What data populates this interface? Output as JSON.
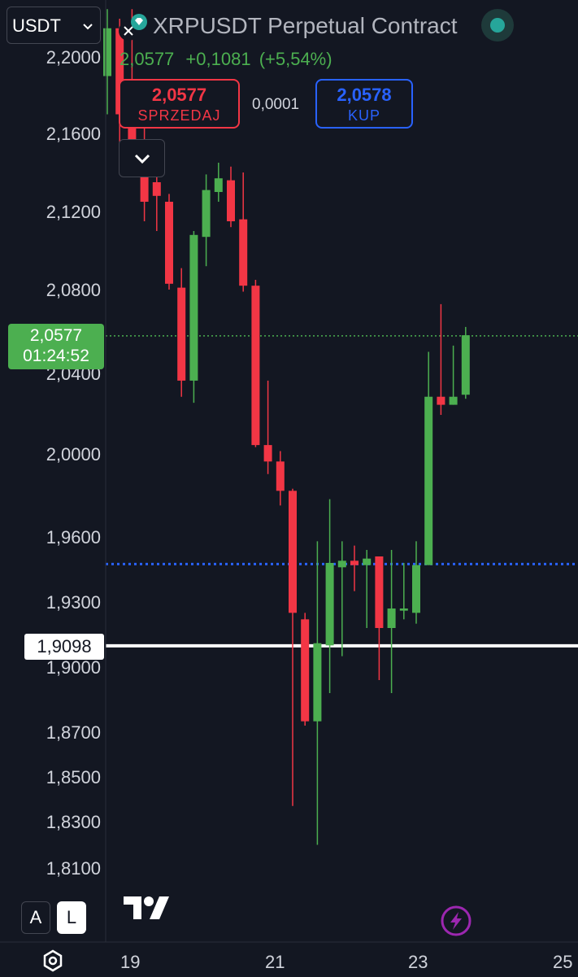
{
  "header": {
    "currency_select": "USDT",
    "title": "XRPUSDT Perpetual Contract",
    "last_price": "2,0577",
    "change": "+0,1081",
    "change_pct": "(+5,54%)",
    "sell_price": "2,0577",
    "sell_label": "SPRZEDAJ",
    "spread": "0,0001",
    "buy_price": "2,0578",
    "buy_label": "KUP"
  },
  "price_tag": {
    "price": "2,0577",
    "countdown": "01:24:52"
  },
  "white_line_label": "1,9098",
  "bottom": {
    "btn_a": "A",
    "btn_l": "L"
  },
  "colors": {
    "bg": "#131722",
    "up": "#4caf50",
    "down": "#f23645",
    "blue_line": "#2962ff",
    "status_dot": "#26a69a",
    "bolt": "#9c27b0"
  },
  "icons": [
    "close-icon",
    "dropdown-chevron-icon",
    "collapse-chevron-icon",
    "diamond-icon",
    "status-dot-icon",
    "tradingview-logo-icon",
    "lightning-icon",
    "settings-gear-icon"
  ],
  "chart_data": {
    "type": "candlestick",
    "y_ticks": [
      "2,2000",
      "2,1600",
      "2,1200",
      "2,0800",
      "2,0400",
      "2,0000",
      "1,9600",
      "1,9300",
      "1,9000",
      "1,8700",
      "1,8500",
      "1,8300",
      "1,8100"
    ],
    "x_ticks": [
      "19",
      "21",
      "23",
      "25"
    ],
    "horizontal_lines": [
      {
        "value": 2.0577,
        "style": "dotted",
        "color": "#4caf50"
      },
      {
        "value": 1.9475,
        "style": "dotted",
        "color": "#2962ff"
      },
      {
        "value": 1.9098,
        "style": "solid",
        "color": "#ffffff"
      }
    ],
    "candles": [
      {
        "o": 2.19,
        "h": 2.225,
        "l": 2.17,
        "c": 2.215
      },
      {
        "o": 2.215,
        "h": 2.22,
        "l": 2.155,
        "c": 2.17
      },
      {
        "o": 2.17,
        "h": 2.225,
        "l": 2.14,
        "c": 2.15
      },
      {
        "o": 2.15,
        "h": 2.175,
        "l": 2.115,
        "c": 2.125
      },
      {
        "o": 2.135,
        "h": 2.148,
        "l": 2.11,
        "c": 2.128
      },
      {
        "o": 2.125,
        "h": 2.129,
        "l": 2.08,
        "c": 2.083
      },
      {
        "o": 2.081,
        "h": 2.091,
        "l": 2.028,
        "c": 2.036
      },
      {
        "o": 2.036,
        "h": 2.11,
        "l": 2.025,
        "c": 2.108
      },
      {
        "o": 2.107,
        "h": 2.139,
        "l": 2.092,
        "c": 2.131
      },
      {
        "o": 2.13,
        "h": 2.145,
        "l": 2.125,
        "c": 2.137
      },
      {
        "o": 2.136,
        "h": 2.143,
        "l": 2.112,
        "c": 2.115
      },
      {
        "o": 2.116,
        "h": 2.14,
        "l": 2.079,
        "c": 2.082
      },
      {
        "o": 2.082,
        "h": 2.085,
        "l": 2.003,
        "c": 2.004
      },
      {
        "o": 2.004,
        "h": 2.036,
        "l": 1.99,
        "c": 1.996
      },
      {
        "o": 1.996,
        "h": 2.001,
        "l": 1.975,
        "c": 1.982
      },
      {
        "o": 1.982,
        "h": 1.983,
        "l": 1.837,
        "c": 1.925
      },
      {
        "o": 1.922,
        "h": 1.925,
        "l": 1.873,
        "c": 1.875
      },
      {
        "o": 1.875,
        "h": 1.958,
        "l": 1.82,
        "c": 1.911
      },
      {
        "o": 1.91,
        "h": 1.978,
        "l": 1.888,
        "c": 1.948
      },
      {
        "o": 1.946,
        "h": 1.958,
        "l": 1.905,
        "c": 1.949
      },
      {
        "o": 1.949,
        "h": 1.956,
        "l": 1.935,
        "c": 1.947
      },
      {
        "o": 1.947,
        "h": 1.954,
        "l": 1.918,
        "c": 1.95
      },
      {
        "o": 1.951,
        "h": 1.951,
        "l": 1.894,
        "c": 1.918
      },
      {
        "o": 1.918,
        "h": 1.954,
        "l": 1.888,
        "c": 1.927
      },
      {
        "o": 1.926,
        "h": 1.948,
        "l": 1.922,
        "c": 1.927
      },
      {
        "o": 1.925,
        "h": 1.958,
        "l": 1.92,
        "c": 1.947
      },
      {
        "o": 1.947,
        "h": 2.05,
        "l": 1.947,
        "c": 2.028
      },
      {
        "o": 2.028,
        "h": 2.073,
        "l": 2.019,
        "c": 2.024
      },
      {
        "o": 2.024,
        "h": 2.053,
        "l": 2.024,
        "c": 2.028
      },
      {
        "o": 2.029,
        "h": 2.062,
        "l": 2.027,
        "c": 2.058
      }
    ]
  }
}
